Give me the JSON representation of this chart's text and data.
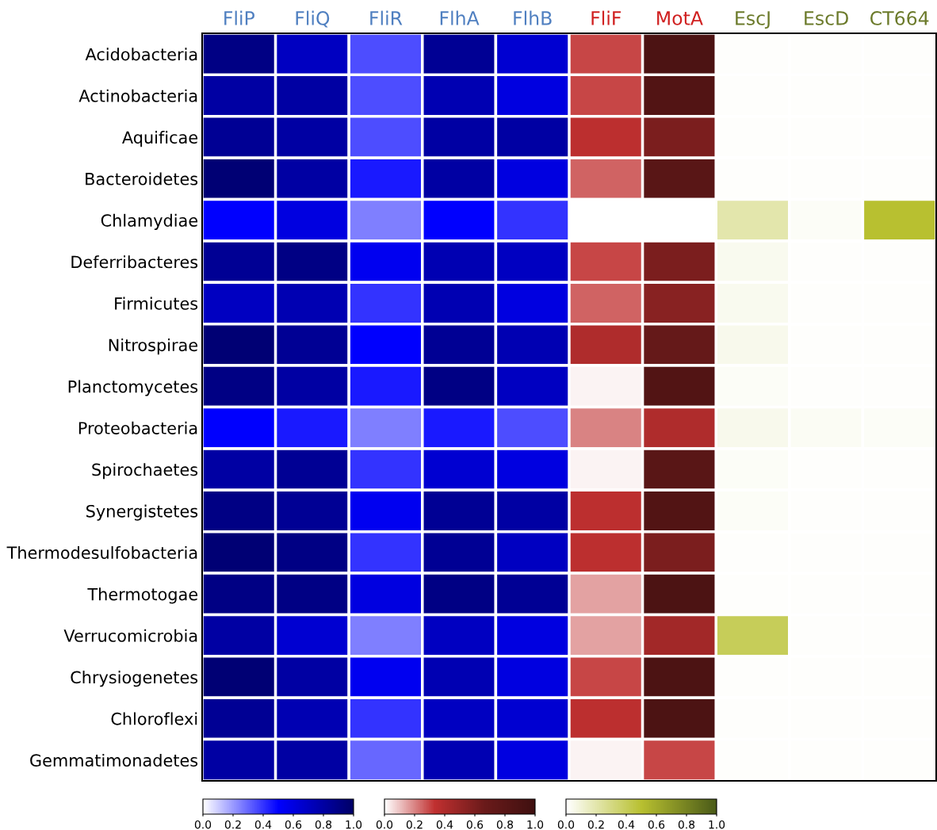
{
  "chart_data": [
    {
      "type": "heatmap",
      "categories": [
        "FliP",
        "FliQ",
        "FliR",
        "FlhA",
        "FlhB"
      ],
      "y_categories": [
        "Acidobacteria",
        "Actinobacteria",
        "Aquificae",
        "Bacteroidetes",
        "Chlamydiae",
        "Deferribacteres",
        "Firmicutes",
        "Nitrospirae",
        "Planctomycetes",
        "Proteobacteria",
        "Spirochaetes",
        "Synergistetes",
        "Thermodesulfobacteria",
        "Thermotogae",
        "Verrucomicrobia",
        "Chrysiogenetes",
        "Chloroflexi",
        "Gemmatimonadetes"
      ],
      "cells": [
        [
          0.9,
          0.7,
          0.35,
          0.85,
          0.65
        ],
        [
          0.8,
          0.8,
          0.35,
          0.75,
          0.6
        ],
        [
          0.85,
          0.8,
          0.35,
          0.8,
          0.8
        ],
        [
          0.95,
          0.8,
          0.45,
          0.8,
          0.6
        ],
        [
          0.5,
          0.6,
          0.25,
          0.5,
          0.4
        ],
        [
          0.85,
          0.9,
          0.55,
          0.75,
          0.7
        ],
        [
          0.7,
          0.75,
          0.4,
          0.75,
          0.6
        ],
        [
          0.95,
          0.85,
          0.5,
          0.85,
          0.75
        ],
        [
          0.9,
          0.8,
          0.45,
          0.9,
          0.7
        ],
        [
          0.5,
          0.45,
          0.25,
          0.45,
          0.35
        ],
        [
          0.8,
          0.85,
          0.4,
          0.65,
          0.6
        ],
        [
          0.9,
          0.85,
          0.55,
          0.85,
          0.8
        ],
        [
          0.95,
          0.9,
          0.4,
          0.85,
          0.7
        ],
        [
          0.9,
          0.9,
          0.6,
          0.9,
          0.85
        ],
        [
          0.8,
          0.65,
          0.25,
          0.7,
          0.6
        ],
        [
          0.95,
          0.8,
          0.55,
          0.75,
          0.6
        ],
        [
          0.85,
          0.75,
          0.4,
          0.7,
          0.65
        ],
        [
          0.8,
          0.8,
          0.3,
          0.75,
          0.6
        ]
      ],
      "clim": [
        0,
        1
      ],
      "cticks": [
        {
          "value": 0,
          "label": "0.0"
        },
        {
          "value": 0.2,
          "label": "0.2"
        },
        {
          "value": 0.4,
          "label": "0.4"
        },
        {
          "value": 0.6,
          "label": "0.6"
        },
        {
          "value": 0.8,
          "label": "0.8"
        },
        {
          "value": 1,
          "label": "1.0"
        }
      ]
    },
    {
      "type": "heatmap",
      "categories": [
        "FliF",
        "MotA"
      ],
      "tick_labels": "x",
      "y_categories": [
        null,
        null,
        null,
        null,
        null,
        null,
        null,
        null,
        null,
        null,
        null,
        null,
        null,
        null,
        null,
        null,
        null,
        null
      ],
      "cells": [
        [
          0.3,
          0.9
        ],
        [
          0.3,
          0.85
        ],
        [
          0.35,
          0.6
        ],
        [
          0.25,
          0.8
        ],
        [
          0.0,
          0.0
        ],
        [
          0.3,
          0.6
        ],
        [
          0.25,
          0.55
        ],
        [
          0.4,
          0.7
        ],
        [
          0.02,
          0.85
        ],
        [
          0.2,
          0.4
        ],
        [
          0.02,
          0.8
        ],
        [
          0.35,
          0.85
        ],
        [
          0.35,
          0.6
        ],
        [
          0.15,
          0.9
        ],
        [
          0.15,
          0.45
        ],
        [
          0.3,
          0.9
        ],
        [
          0.35,
          0.9
        ],
        [
          0.02,
          0.3
        ]
      ],
      "clim": [
        0,
        1
      ],
      "cticks": [
        {
          "value": 0,
          "label": "0.0"
        },
        {
          "value": 0.2,
          "label": "0.2"
        },
        {
          "value": 0.4,
          "label": "0.4"
        },
        {
          "value": 0.6,
          "label": "0.6"
        },
        {
          "value": 0.8,
          "label": "0.8"
        },
        {
          "value": 1,
          "label": "1.0"
        }
      ]
    },
    {
      "type": "heatmap",
      "categories": [
        "EscJ",
        "EscD",
        "CT664"
      ],
      "tick_labels": "x",
      "y_categories": [
        null,
        null,
        null,
        null,
        null,
        null,
        null,
        null,
        null,
        null,
        null,
        null,
        null,
        null,
        null,
        null,
        null,
        null
      ],
      "cells": [
        [
          0.01,
          0.01,
          0.01
        ],
        [
          0.01,
          0.01,
          0.01
        ],
        [
          0.01,
          0.01,
          0.01
        ],
        [
          0.01,
          0.01,
          0.01
        ],
        [
          0.2,
          0.02,
          0.5
        ],
        [
          0.04,
          0.01,
          0.01
        ],
        [
          0.04,
          0.01,
          0.01
        ],
        [
          0.05,
          0.01,
          0.01
        ],
        [
          0.02,
          0.01,
          0.01
        ],
        [
          0.05,
          0.03,
          0.02
        ],
        [
          0.02,
          0.01,
          0.01
        ],
        [
          0.02,
          0.01,
          0.01
        ],
        [
          0.01,
          0.01,
          0.01
        ],
        [
          0.01,
          0.01,
          0.01
        ],
        [
          0.4,
          0.01,
          0.01
        ],
        [
          0.01,
          0.01,
          0.01
        ],
        [
          0.01,
          0.01,
          0.01
        ],
        [
          0.01,
          0.01,
          0.01
        ]
      ],
      "clim": [
        0,
        1
      ],
      "cticks": [
        {
          "value": 0,
          "label": "0.0"
        },
        {
          "value": 0.2,
          "label": "0.2"
        },
        {
          "value": 0.4,
          "label": "0.4"
        },
        {
          "value": 0.6,
          "label": "0.6"
        },
        {
          "value": 0.8,
          "label": "0.8"
        },
        {
          "value": 1,
          "label": "1.0"
        }
      ]
    }
  ]
}
